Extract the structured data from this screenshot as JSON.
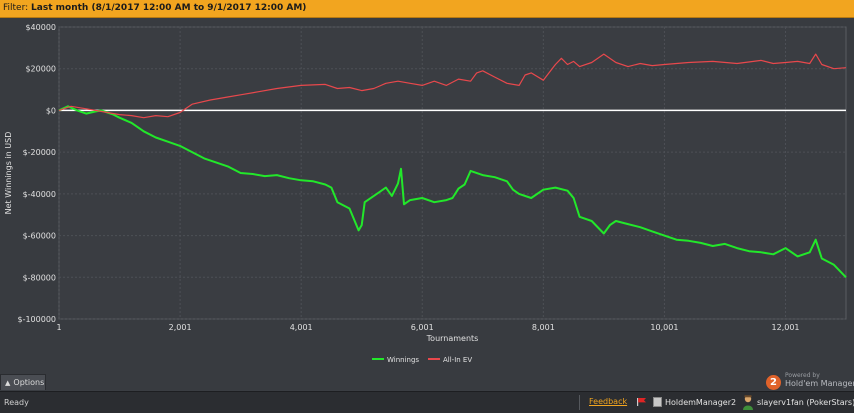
{
  "filter": {
    "label": "Filter:",
    "value": "Last month (8/1/2017 12:00 AM to 9/1/2017 12:00 AM)"
  },
  "chart_data": {
    "type": "line",
    "xlabel": "Tournaments",
    "ylabel": "Net Winnings in USD",
    "xlim": [
      1,
      13000
    ],
    "ylim": [
      -100000,
      40000
    ],
    "x_ticks": [
      1,
      2001,
      4001,
      6001,
      8001,
      10001,
      12001
    ],
    "x_tick_labels": [
      "1",
      "2,001",
      "4,001",
      "6,001",
      "8,001",
      "10,001",
      "12,001"
    ],
    "y_ticks": [
      40000,
      20000,
      0,
      -20000,
      -40000,
      -60000,
      -80000,
      -100000
    ],
    "y_tick_labels": [
      "$40000",
      "$20000",
      "$0",
      "$-20000",
      "$-40000",
      "$-60000",
      "$-80000",
      "$-100000"
    ],
    "grid": true,
    "legend_position": "bottom-center",
    "series": [
      {
        "name": "Winnings",
        "color": "#22e82a",
        "x": [
          1,
          150,
          300,
          450,
          600,
          700,
          800,
          900,
          1000,
          1200,
          1400,
          1600,
          1800,
          2000,
          2200,
          2400,
          2600,
          2800,
          3000,
          3200,
          3400,
          3600,
          3800,
          4000,
          4200,
          4400,
          4500,
          4600,
          4800,
          4950,
          5000,
          5050,
          5200,
          5400,
          5500,
          5600,
          5650,
          5700,
          5800,
          6000,
          6200,
          6400,
          6500,
          6600,
          6700,
          6800,
          7000,
          7200,
          7400,
          7500,
          7600,
          7800,
          8000,
          8200,
          8400,
          8500,
          8600,
          8800,
          9000,
          9100,
          9200,
          9400,
          9600,
          9800,
          10000,
          10200,
          10400,
          10600,
          10800,
          11000,
          11200,
          11400,
          11600,
          11800,
          12000,
          12200,
          12400,
          12500,
          12600,
          12800,
          13000
        ],
        "y": [
          0,
          2000,
          0,
          -1500,
          -500,
          0,
          -1000,
          -2000,
          -3500,
          -6000,
          -10000,
          -13000,
          -15000,
          -17000,
          -20000,
          -23000,
          -25000,
          -27000,
          -30000,
          -30500,
          -31500,
          -31000,
          -32500,
          -33500,
          -34000,
          -35500,
          -37000,
          -44000,
          -47000,
          -57500,
          -55000,
          -44000,
          -41000,
          -37000,
          -41000,
          -35000,
          -28000,
          -45000,
          -43000,
          -42000,
          -44000,
          -43000,
          -42000,
          -37500,
          -35500,
          -29000,
          -31000,
          -32000,
          -34000,
          -38000,
          -40000,
          -42000,
          -38000,
          -37000,
          -38500,
          -42000,
          -51000,
          -53000,
          -59000,
          -55000,
          -53000,
          -54500,
          -56000,
          -58000,
          -60000,
          -62000,
          -62500,
          -63500,
          -65000,
          -64000,
          -66000,
          -67500,
          -68000,
          -69000,
          -66000,
          -70000,
          -68000,
          -62000,
          -71000,
          -74000,
          -80000
        ]
      },
      {
        "name": "All-In EV",
        "color": "#e8484c",
        "x": [
          1,
          200,
          400,
          600,
          800,
          1000,
          1200,
          1400,
          1600,
          1800,
          2000,
          2200,
          2500,
          2800,
          3000,
          3300,
          3600,
          4000,
          4400,
          4600,
          4800,
          5000,
          5200,
          5400,
          5600,
          5800,
          6000,
          6200,
          6400,
          6600,
          6800,
          6900,
          7000,
          7200,
          7400,
          7600,
          7700,
          7800,
          8000,
          8200,
          8300,
          8400,
          8500,
          8600,
          8800,
          9000,
          9200,
          9400,
          9600,
          9800,
          10000,
          10400,
          10800,
          11200,
          11600,
          11800,
          12000,
          12200,
          12400,
          12500,
          12600,
          12800,
          13000
        ],
        "y": [
          0,
          2000,
          1000,
          0,
          -1000,
          -2000,
          -2500,
          -3500,
          -2500,
          -3000,
          -1000,
          3000,
          5000,
          6500,
          7500,
          9000,
          10500,
          12000,
          12500,
          10500,
          11000,
          9500,
          10500,
          13000,
          14000,
          13000,
          12000,
          14000,
          12000,
          15000,
          14000,
          18000,
          19000,
          16000,
          13000,
          12000,
          17000,
          18000,
          14500,
          22000,
          25000,
          22000,
          23500,
          21000,
          23000,
          27000,
          23000,
          21000,
          22500,
          21500,
          22000,
          23000,
          23500,
          22500,
          24000,
          22500,
          23000,
          23500,
          22500,
          27000,
          22000,
          20000,
          20500
        ]
      }
    ]
  },
  "options": {
    "label": "Options"
  },
  "powered": {
    "line1": "Powered by",
    "line2": "Hold'em Manager",
    "logo_text": "2"
  },
  "status": {
    "ready": "Ready",
    "feedback": "Feedback",
    "app_label": "HoldemManager2",
    "user_label": "slayerv1fan (PokerStars)"
  }
}
